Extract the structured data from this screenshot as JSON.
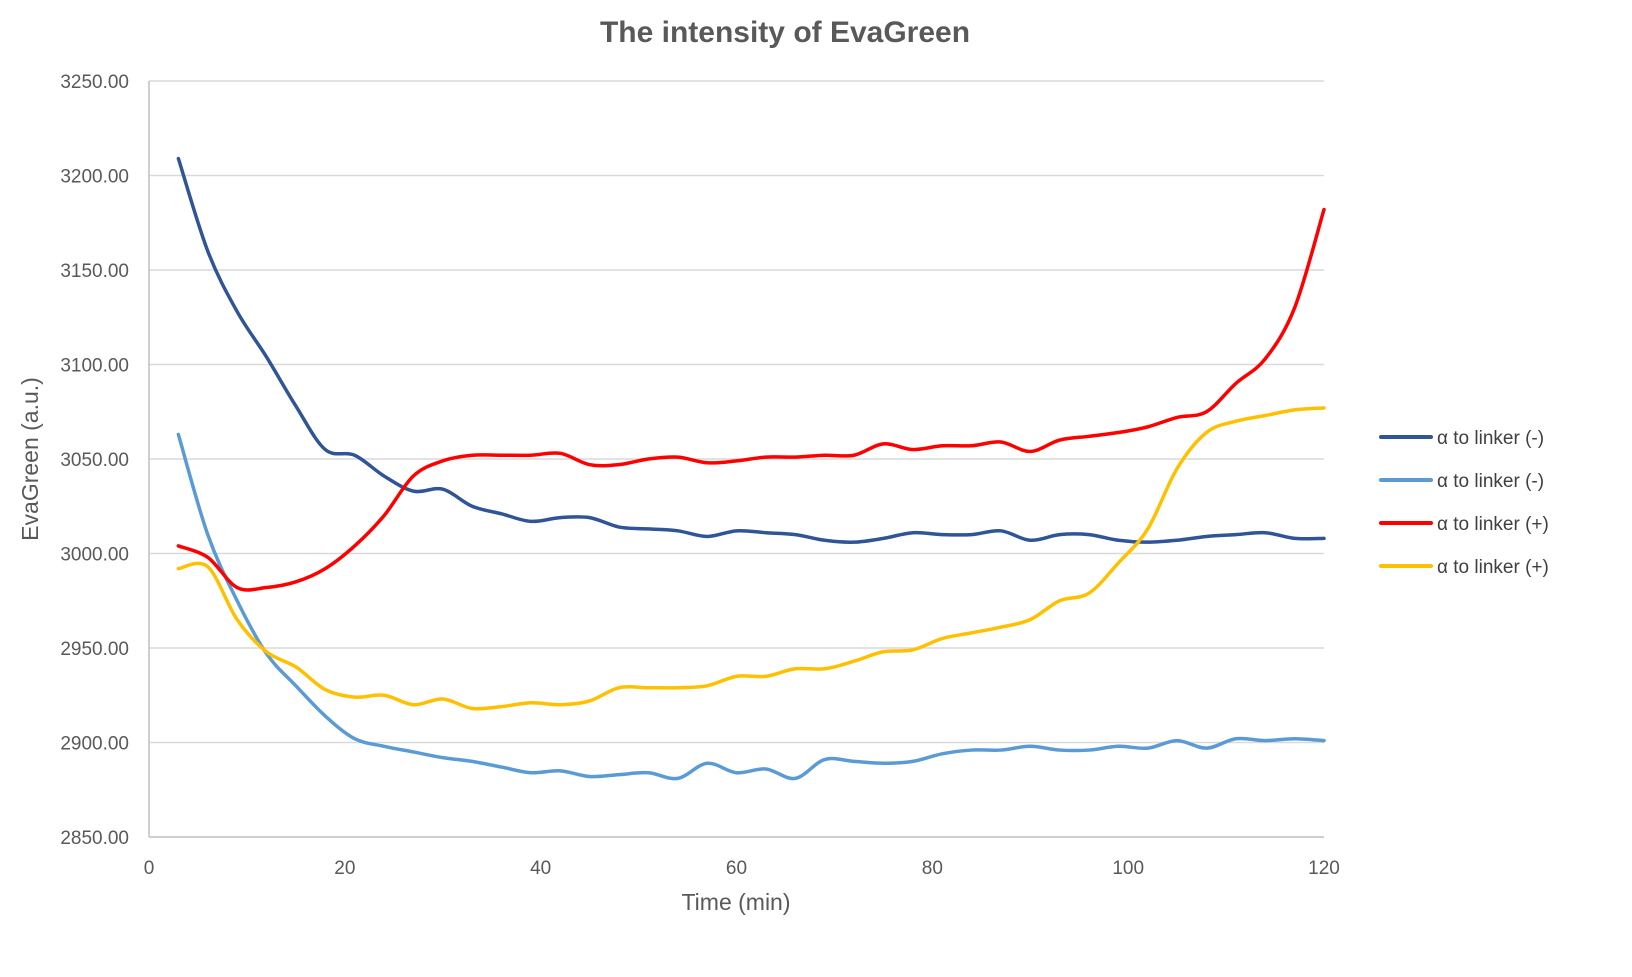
{
  "chart_data": {
    "type": "line",
    "title": "The intensity of EvaGreen",
    "xlabel": "Time (min)",
    "ylabel": "EvaGreen (a.u.)",
    "xlim": [
      0,
      120
    ],
    "ylim": [
      2850,
      3250
    ],
    "x_ticks": [
      0,
      20,
      40,
      60,
      80,
      100,
      120
    ],
    "x_tick_labels": [
      "0",
      "20",
      "40",
      "60",
      "80",
      "100",
      "120"
    ],
    "y_ticks": [
      2850,
      2900,
      2950,
      3000,
      3050,
      3100,
      3150,
      3200,
      3250
    ],
    "y_tick_labels": [
      "2850.00",
      "2900.00",
      "2950.00",
      "3000.00",
      "3050.00",
      "3100.00",
      "3150.00",
      "3200.00",
      "3250.00"
    ],
    "grid": "horizontal",
    "legend_position": "right",
    "series": [
      {
        "name": "α to linker (-)",
        "color": "#2f5597",
        "x": [
          3,
          6,
          9,
          12,
          15,
          18,
          21,
          24,
          27,
          30,
          33,
          36,
          39,
          42,
          45,
          48,
          51,
          54,
          57,
          60,
          63,
          66,
          69,
          72,
          75,
          78,
          81,
          84,
          87,
          90,
          93,
          96,
          99,
          102,
          105,
          108,
          111,
          114,
          117,
          120
        ],
        "y": [
          3209,
          3160,
          3128,
          3104,
          3078,
          3055,
          3052,
          3041,
          3033,
          3034,
          3025,
          3021,
          3017,
          3019,
          3019,
          3014,
          3013,
          3012,
          3009,
          3012,
          3011,
          3010,
          3007,
          3006,
          3008,
          3011,
          3010,
          3010,
          3012,
          3007,
          3010,
          3010,
          3007,
          3006,
          3007,
          3009,
          3010,
          3011,
          3008,
          3008
        ]
      },
      {
        "name": "α to linker (-)",
        "color": "#5b9bd5",
        "x": [
          3,
          6,
          9,
          12,
          15,
          18,
          21,
          24,
          27,
          30,
          33,
          36,
          39,
          42,
          45,
          48,
          51,
          54,
          57,
          60,
          63,
          66,
          69,
          72,
          75,
          78,
          81,
          84,
          87,
          90,
          93,
          96,
          99,
          102,
          105,
          108,
          111,
          114,
          117,
          120
        ],
        "y": [
          3063,
          3010,
          2975,
          2947,
          2930,
          2914,
          2902,
          2898,
          2895,
          2892,
          2890,
          2887,
          2884,
          2885,
          2882,
          2883,
          2884,
          2881,
          2889,
          2884,
          2886,
          2881,
          2891,
          2890,
          2889,
          2890,
          2894,
          2896,
          2896,
          2898,
          2896,
          2896,
          2898,
          2897,
          2901,
          2897,
          2902,
          2901,
          2902,
          2901
        ]
      },
      {
        "name": "α to linker (+)",
        "color": "#ff0000",
        "x": [
          3,
          6,
          9,
          12,
          15,
          18,
          21,
          24,
          27,
          30,
          33,
          36,
          39,
          42,
          45,
          48,
          51,
          54,
          57,
          60,
          63,
          66,
          69,
          72,
          75,
          78,
          81,
          84,
          87,
          90,
          93,
          96,
          99,
          102,
          105,
          108,
          111,
          114,
          117,
          120
        ],
        "y": [
          3004,
          2998,
          2982,
          2982,
          2985,
          2992,
          3004,
          3020,
          3041,
          3049,
          3052,
          3052,
          3052,
          3053,
          3047,
          3047,
          3050,
          3051,
          3048,
          3049,
          3051,
          3051,
          3052,
          3052,
          3058,
          3055,
          3057,
          3057,
          3059,
          3054,
          3060,
          3062,
          3064,
          3067,
          3072,
          3075,
          3090,
          3103,
          3130,
          3182
        ]
      },
      {
        "name": "α to linker (+)",
        "color": "#ffc000",
        "x": [
          3,
          6,
          9,
          12,
          15,
          18,
          21,
          24,
          27,
          30,
          33,
          36,
          39,
          42,
          45,
          48,
          51,
          54,
          57,
          60,
          63,
          66,
          69,
          72,
          75,
          78,
          81,
          84,
          87,
          90,
          93,
          96,
          99,
          102,
          105,
          108,
          111,
          114,
          117,
          120
        ],
        "y": [
          2992,
          2993,
          2965,
          2948,
          2940,
          2928,
          2924,
          2925,
          2920,
          2923,
          2918,
          2919,
          2921,
          2920,
          2922,
          2929,
          2929,
          2929,
          2930,
          2935,
          2935,
          2939,
          2939,
          2943,
          2948,
          2949,
          2955,
          2958,
          2961,
          2965,
          2975,
          2979,
          2995,
          3013,
          3045,
          3064,
          3070,
          3073,
          3076,
          3077
        ]
      }
    ]
  }
}
